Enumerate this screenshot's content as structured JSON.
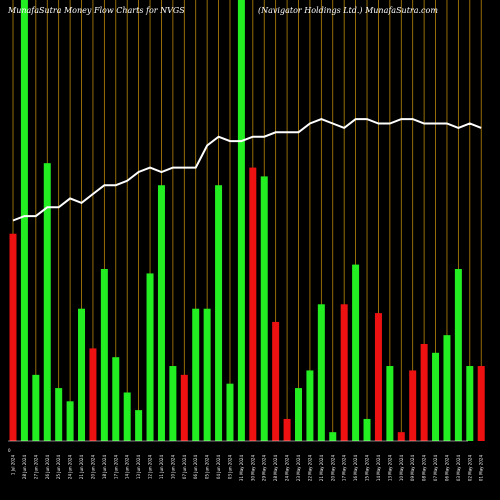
{
  "header": {
    "left": "MunafaSutra  Money Flow  Charts for NVGS",
    "right": "(Navigator Holdings Ltd.) MunafaSutra.com"
  },
  "colors": {
    "background": "#000000",
    "up_bar": "#22ee22",
    "down_bar": "#ee1111",
    "gridline": "#b8860b",
    "price_line": "#ffffff"
  },
  "chart_data": {
    "type": "bar",
    "title": "",
    "y_axis_label": "0",
    "ylim": [
      0,
      100
    ],
    "x": [
      "Mon 1 Jul 2024",
      "Fri 28 Jun 2024",
      "Thu 27 Jun 2024",
      "Wed 26 Jun 2024",
      "Tue 25 Jun 2024",
      "Mon 24 Jun 2024",
      "Fri 21 Jun 2024",
      "Thu 20 Jun 2024",
      "Tue 18 Jun 2024",
      "Mon 17 Jun 2024",
      "Fri 14 Jun 2024",
      "Thu 13 Jun 2024",
      "Wed 12 Jun 2024",
      "Tue 11 Jun 2024",
      "Mon 10 Jun 2024",
      "Fri 07 Jun 2024",
      "Thu 06 Jun 2024",
      "Wed 05 Jun 2024",
      "Tue 04 Jun 2024",
      "Mon 03 Jun 2024",
      "Fri 31 May 2024",
      "Thu 30 May 2024",
      "Wed 29 May 2024",
      "Tue 28 May 2024",
      "Fri 24 May 2024",
      "Thu 23 May 2024",
      "Wed 22 May 2024",
      "Tue 21 May 2024",
      "Mon 20 May 2024",
      "Fri 17 May 2024",
      "Thu 16 May 2024",
      "Wed 15 May 2024",
      "Tue 14 May 2024",
      "Mon 13 May 2024",
      "Fri 10 May 2024",
      "Thu 09 May 2024",
      "Wed 08 May 2024",
      "Tue 07 May 2024",
      "Mon 06 May 2024",
      "Fri 03 May 2024",
      "Thu 02 May 2024",
      "Wed 01 May 2024"
    ],
    "x_tick_labels": [
      "1 Jul 2024",
      "28 Jun 2024",
      "27 Jun 2024",
      "26 Jun 2024",
      "25 Jun 2024",
      "24 Jun 2024",
      "21 Jun 2024",
      "20 Jun 2024",
      "18 Jun 2024",
      "17 Jun 2024",
      "14 Jun 2024",
      "13 Jun 2024",
      "12 Jun 2024",
      "11 Jun 2024",
      "10 Jun 2024",
      "07 Jun 2024",
      "06 Jun 2024",
      "05 Jun 2024",
      "04 Jun 2024",
      "03 Jun 2024",
      "31 May 2024",
      "30 May 2024",
      "29 May 2024",
      "28 May 2024",
      "24 May 2024",
      "23 May 2024",
      "22 May 2024",
      "21 May 2024",
      "20 May 2024",
      "17 May 2024",
      "16 May 2024",
      "15 May 2024",
      "14 May 2024",
      "13 May 2024",
      "10 May 2024",
      "09 May 2024",
      "08 May 2024",
      "07 May 2024",
      "06 May 2024",
      "03 May 2024",
      "02 May 2024",
      "01 May 2024"
    ],
    "series": [
      {
        "type": "bar",
        "values": [
          47,
          100,
          15,
          63,
          12,
          9,
          30,
          21,
          39,
          19,
          11,
          7,
          38,
          58,
          17,
          15,
          30,
          30,
          58,
          13,
          100,
          62,
          60,
          27,
          5,
          12,
          16,
          31,
          2,
          31,
          40,
          5,
          29,
          17,
          2,
          16,
          22,
          20,
          24,
          39,
          17,
          17
        ],
        "direction": [
          "down",
          "up",
          "up",
          "up",
          "up",
          "up",
          "up",
          "down",
          "up",
          "up",
          "up",
          "up",
          "up",
          "up",
          "up",
          "down",
          "up",
          "up",
          "up",
          "up",
          "up",
          "down",
          "up",
          "down",
          "down",
          "up",
          "up",
          "up",
          "up",
          "down",
          "up",
          "up",
          "down",
          "up",
          "down",
          "down",
          "down",
          "up",
          "up",
          "up",
          "up",
          "down"
        ]
      },
      {
        "type": "line",
        "values": [
          50,
          51,
          51,
          53,
          53,
          55,
          54,
          56,
          58,
          58,
          59,
          61,
          62,
          61,
          62,
          62,
          62,
          67,
          69,
          68,
          68,
          69,
          69,
          70,
          70,
          70,
          72,
          73,
          72,
          71,
          73,
          73,
          72,
          72,
          73,
          73,
          72,
          72,
          72,
          71,
          72,
          71
        ]
      }
    ]
  }
}
